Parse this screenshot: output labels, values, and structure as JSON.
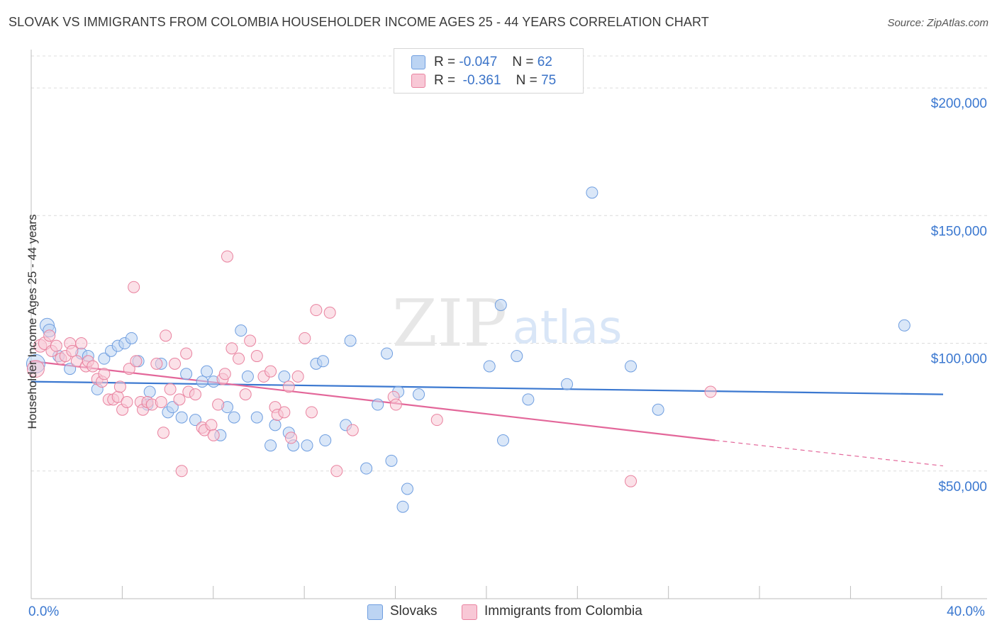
{
  "title": "SLOVAK VS IMMIGRANTS FROM COLOMBIA HOUSEHOLDER INCOME AGES 25 - 44 YEARS CORRELATION CHART",
  "source": "Source: ZipAtlas.com",
  "watermark": {
    "zip": "ZIP",
    "atlas": "atlas"
  },
  "legend": {
    "r_label": "R =",
    "n_label": "N =",
    "slovaks": {
      "r": "-0.047",
      "n": "62"
    },
    "colombia": {
      "r": "-0.361",
      "n": "75"
    }
  },
  "bottom_legend": {
    "slovaks": "Slovaks",
    "colombia": "Immigrants from Colombia"
  },
  "colors": {
    "blue_fill": "#bcd4f3",
    "blue_stroke": "#6f9ee0",
    "blue_line": "#3b78d0",
    "pink_fill": "#f8c8d6",
    "pink_stroke": "#e9829f",
    "pink_line": "#e3679a",
    "axis_text": "#3b78d0",
    "grid": "#dcdcdc"
  },
  "chart_data": {
    "type": "scatter",
    "title": "SLOVAK VS IMMIGRANTS FROM COLOMBIA HOUSEHOLDER INCOME AGES 25 - 44 YEARS CORRELATION CHART",
    "xlabel": "",
    "ylabel": "Householder Income Ages 25 - 44 years",
    "xlim": [
      0,
      40
    ],
    "ylim": [
      0,
      215000
    ],
    "x_ticks": [
      {
        "value": 0,
        "label": "0.0%"
      },
      {
        "value": 40,
        "label": "40.0%"
      }
    ],
    "y_ticks": [
      {
        "value": 50000,
        "label": "$50,000"
      },
      {
        "value": 100000,
        "label": "$100,000"
      },
      {
        "value": 150000,
        "label": "$150,000"
      },
      {
        "value": 200000,
        "label": "$200,000"
      }
    ],
    "series": [
      {
        "name": "Slovaks",
        "color": "blue",
        "points": [
          [
            0.2,
            92000,
            26
          ],
          [
            0.7,
            107000,
            20
          ],
          [
            0.8,
            105000,
            18
          ],
          [
            1.2,
            95000,
            16
          ],
          [
            1.7,
            90000,
            16
          ],
          [
            2.2,
            96000,
            16
          ],
          [
            2.5,
            95000,
            16
          ],
          [
            2.9,
            82000,
            16
          ],
          [
            3.2,
            94000,
            16
          ],
          [
            3.5,
            97000,
            16
          ],
          [
            3.8,
            99000,
            16
          ],
          [
            4.1,
            100000,
            16
          ],
          [
            4.4,
            102000,
            16
          ],
          [
            4.7,
            93000,
            16
          ],
          [
            5.2,
            81000,
            16
          ],
          [
            5.1,
            76000,
            16
          ],
          [
            5.7,
            92000,
            16
          ],
          [
            6.0,
            73000,
            16
          ],
          [
            6.2,
            75000,
            16
          ],
          [
            6.6,
            71000,
            16
          ],
          [
            6.8,
            88000,
            16
          ],
          [
            7.2,
            70000,
            16
          ],
          [
            7.5,
            85000,
            16
          ],
          [
            7.7,
            89000,
            16
          ],
          [
            8.0,
            85000,
            16
          ],
          [
            8.3,
            64000,
            16
          ],
          [
            8.6,
            75000,
            16
          ],
          [
            8.9,
            71000,
            16
          ],
          [
            9.2,
            105000,
            16
          ],
          [
            9.5,
            87000,
            16
          ],
          [
            9.9,
            71000,
            16
          ],
          [
            10.5,
            60000,
            16
          ],
          [
            10.7,
            68000,
            16
          ],
          [
            11.1,
            87000,
            16
          ],
          [
            11.3,
            65000,
            16
          ],
          [
            11.5,
            60000,
            16
          ],
          [
            12.1,
            60000,
            16
          ],
          [
            12.5,
            92000,
            16
          ],
          [
            12.8,
            93000,
            16
          ],
          [
            12.9,
            62000,
            16
          ],
          [
            13.8,
            68000,
            16
          ],
          [
            14.0,
            101000,
            16
          ],
          [
            14.7,
            51000,
            16
          ],
          [
            15.2,
            76000,
            16
          ],
          [
            15.6,
            96000,
            16
          ],
          [
            15.8,
            54000,
            16
          ],
          [
            16.1,
            81000,
            16
          ],
          [
            16.3,
            36000,
            16
          ],
          [
            16.5,
            43000,
            16
          ],
          [
            17.0,
            80000,
            16
          ],
          [
            20.1,
            91000,
            16
          ],
          [
            20.6,
            115000,
            16
          ],
          [
            20.7,
            62000,
            16
          ],
          [
            21.3,
            95000,
            16
          ],
          [
            21.8,
            78000,
            16
          ],
          [
            23.5,
            84000,
            16
          ],
          [
            24.6,
            159000,
            16
          ],
          [
            26.3,
            91000,
            16
          ],
          [
            27.5,
            74000,
            16
          ],
          [
            38.3,
            107000,
            16
          ]
        ],
        "trend": {
          "x1": 0,
          "y1": 85000,
          "x2": 40,
          "y2": 80000
        }
      },
      {
        "name": "Immigrants from Colombia",
        "color": "pink",
        "points": [
          [
            0.2,
            90000,
            24
          ],
          [
            0.4,
            99000,
            18
          ],
          [
            0.6,
            100000,
            18
          ],
          [
            0.8,
            103000,
            16
          ],
          [
            0.9,
            97000,
            16
          ],
          [
            1.1,
            99000,
            16
          ],
          [
            1.3,
            94000,
            16
          ],
          [
            1.5,
            95000,
            16
          ],
          [
            1.7,
            100000,
            16
          ],
          [
            1.8,
            97000,
            16
          ],
          [
            2.0,
            93000,
            16
          ],
          [
            2.2,
            100000,
            16
          ],
          [
            2.4,
            91000,
            16
          ],
          [
            2.5,
            93000,
            16
          ],
          [
            2.7,
            91000,
            16
          ],
          [
            2.9,
            86000,
            16
          ],
          [
            3.1,
            85000,
            16
          ],
          [
            3.2,
            88000,
            16
          ],
          [
            3.4,
            78000,
            16
          ],
          [
            3.6,
            78000,
            16
          ],
          [
            3.8,
            79000,
            16
          ],
          [
            3.9,
            83000,
            16
          ],
          [
            4.0,
            74000,
            16
          ],
          [
            4.2,
            77000,
            16
          ],
          [
            4.3,
            90000,
            16
          ],
          [
            4.5,
            122000,
            16
          ],
          [
            4.6,
            93000,
            16
          ],
          [
            4.8,
            77000,
            16
          ],
          [
            4.9,
            74000,
            16
          ],
          [
            5.1,
            77000,
            16
          ],
          [
            5.3,
            76000,
            16
          ],
          [
            5.5,
            92000,
            16
          ],
          [
            5.7,
            77000,
            16
          ],
          [
            5.8,
            65000,
            16
          ],
          [
            5.9,
            103000,
            16
          ],
          [
            6.1,
            82000,
            16
          ],
          [
            6.3,
            92000,
            16
          ],
          [
            6.5,
            78000,
            16
          ],
          [
            6.6,
            50000,
            16
          ],
          [
            6.8,
            96000,
            16
          ],
          [
            6.9,
            81000,
            16
          ],
          [
            7.2,
            80000,
            16
          ],
          [
            7.5,
            67000,
            16
          ],
          [
            7.6,
            66000,
            16
          ],
          [
            7.9,
            68000,
            16
          ],
          [
            8.0,
            64000,
            16
          ],
          [
            8.2,
            76000,
            16
          ],
          [
            8.4,
            86000,
            16
          ],
          [
            8.5,
            88000,
            16
          ],
          [
            8.6,
            134000,
            16
          ],
          [
            8.8,
            98000,
            16
          ],
          [
            9.1,
            94000,
            16
          ],
          [
            9.4,
            80000,
            16
          ],
          [
            9.6,
            101000,
            16
          ],
          [
            9.9,
            95000,
            16
          ],
          [
            10.2,
            87000,
            16
          ],
          [
            10.5,
            89000,
            16
          ],
          [
            10.7,
            75000,
            16
          ],
          [
            10.8,
            72000,
            16
          ],
          [
            11.1,
            73000,
            16
          ],
          [
            11.3,
            83000,
            16
          ],
          [
            11.4,
            63000,
            16
          ],
          [
            11.7,
            87000,
            16
          ],
          [
            12.0,
            102000,
            16
          ],
          [
            12.3,
            73000,
            16
          ],
          [
            12.5,
            113000,
            16
          ],
          [
            13.1,
            112000,
            16
          ],
          [
            13.4,
            50000,
            16
          ],
          [
            14.1,
            66000,
            16
          ],
          [
            15.9,
            79000,
            16
          ],
          [
            16.0,
            76000,
            16
          ],
          [
            17.8,
            70000,
            16
          ],
          [
            26.3,
            46000,
            16
          ],
          [
            29.8,
            81000,
            16
          ]
        ],
        "trend": {
          "x1": 0,
          "y1": 93000,
          "x2": 30,
          "y2": 62000
        },
        "trend_extension": {
          "x1": 30,
          "y1": 62000,
          "x2": 40,
          "y2": 52000
        }
      }
    ]
  }
}
